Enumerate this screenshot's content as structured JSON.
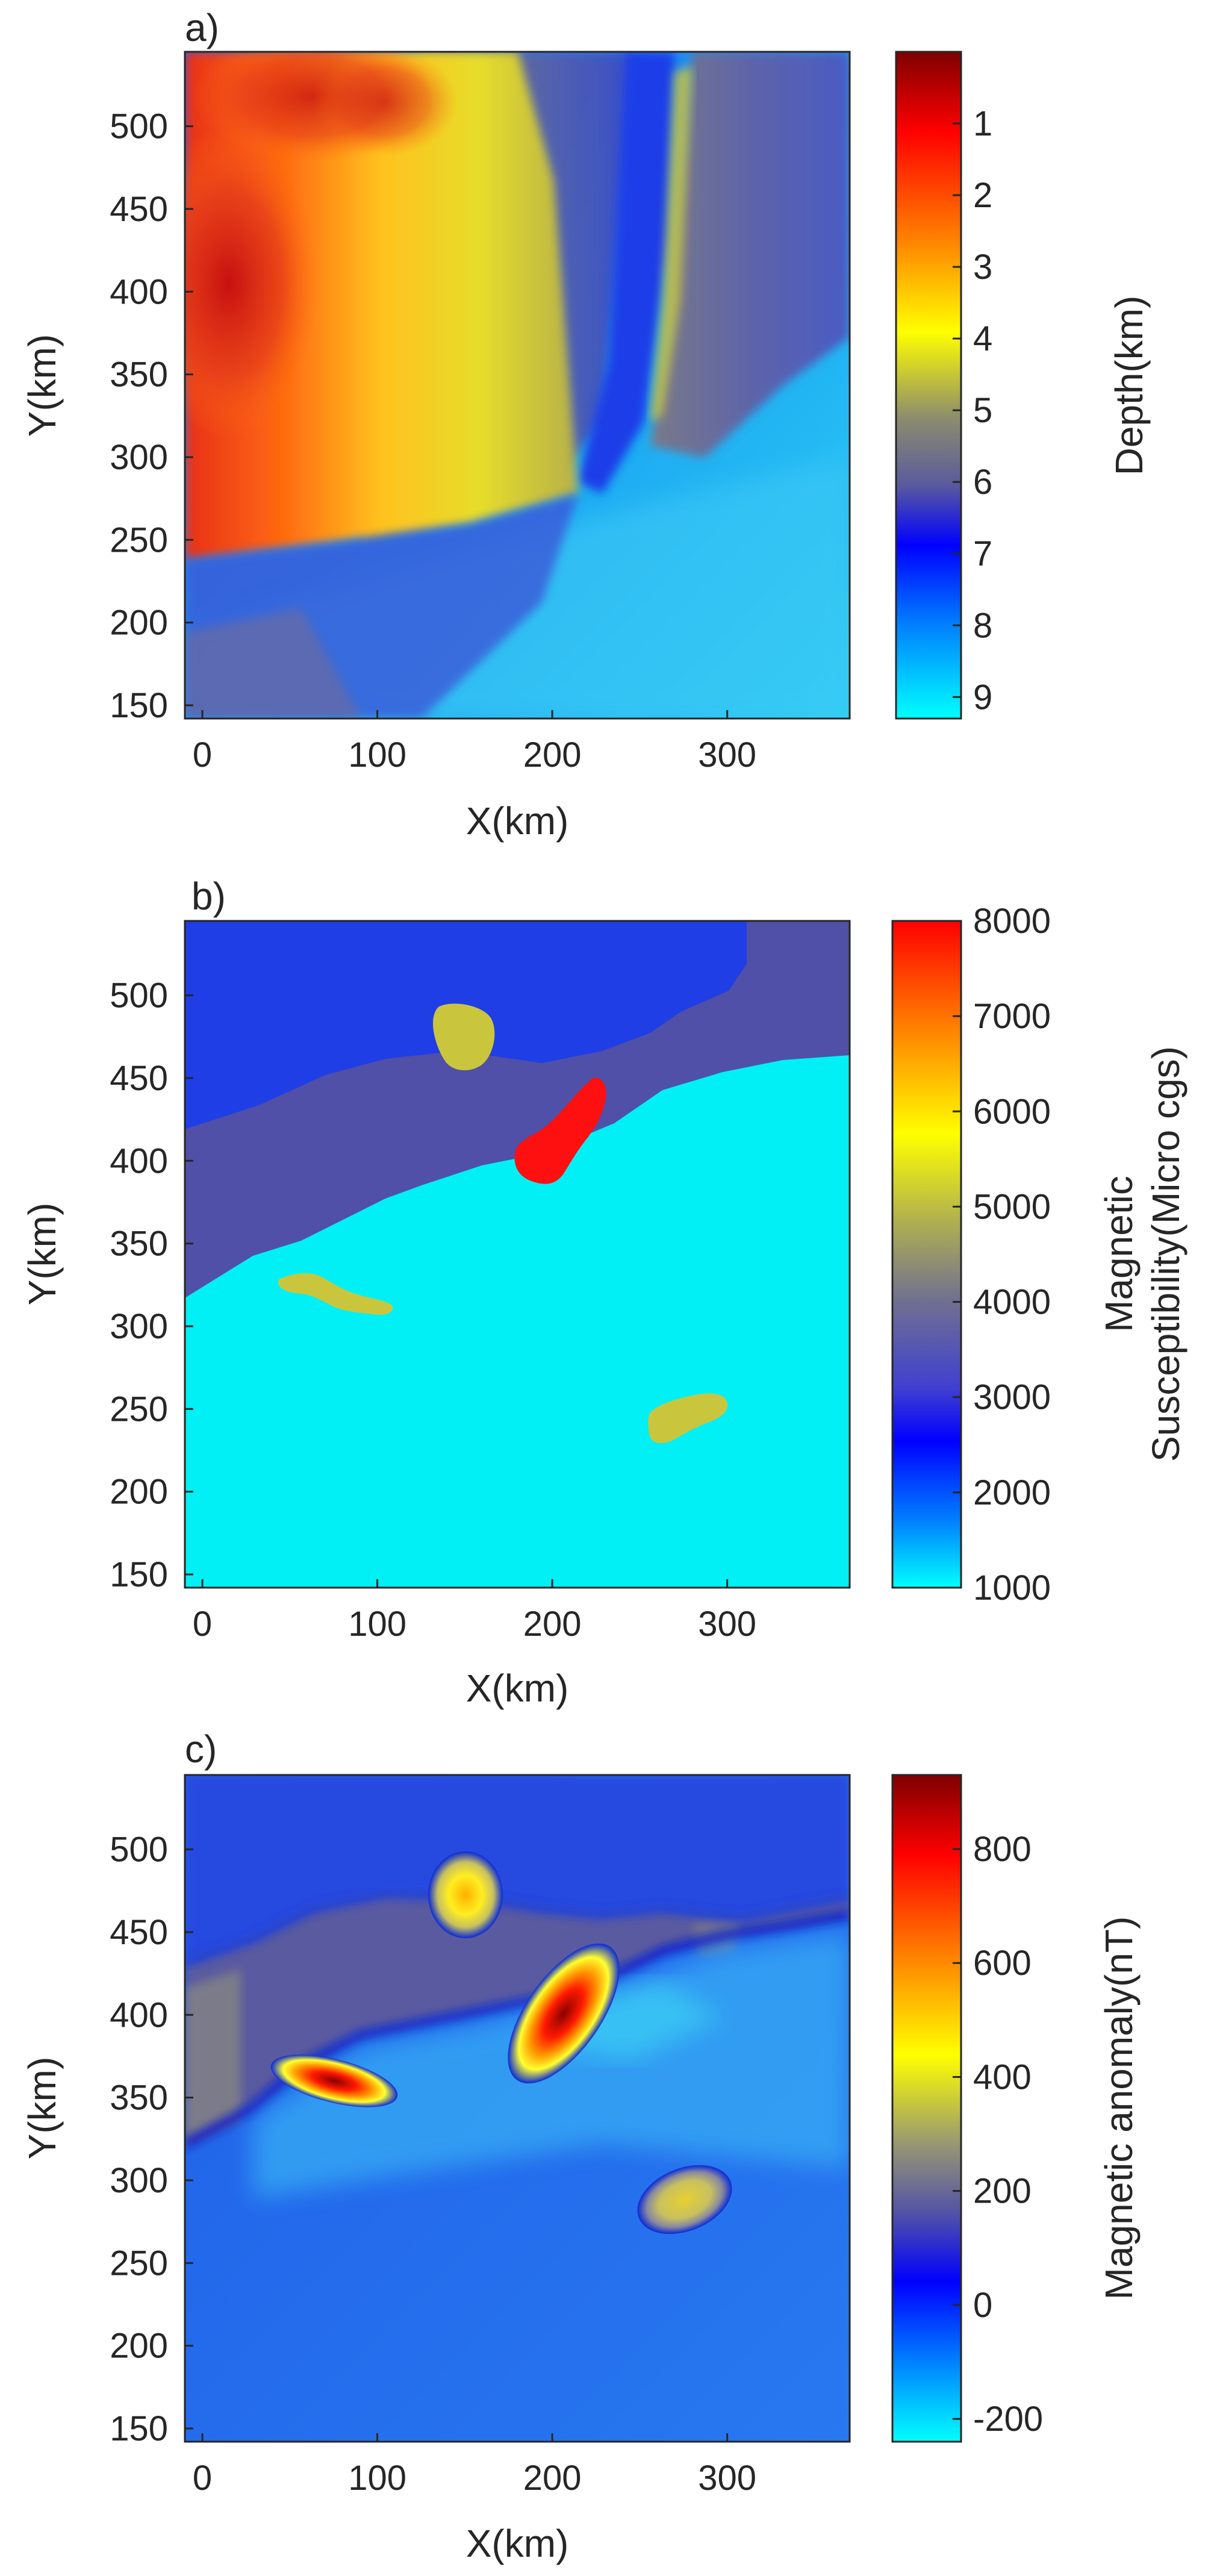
{
  "chart_data": [
    {
      "type": "heatmap",
      "panel_label": "a)",
      "xlabel": "X(km)",
      "ylabel": "Y(km)",
      "xlim": [
        -10,
        370
      ],
      "ylim": [
        142,
        545
      ],
      "xticks": [
        0,
        100,
        200,
        300
      ],
      "yticks": [
        150,
        200,
        250,
        300,
        350,
        400,
        450,
        500
      ],
      "colorbar": {
        "label": "Depth(km)",
        "range": [
          0,
          9.3
        ],
        "reversed": true,
        "ticks": [
          1,
          2,
          3,
          4,
          5,
          6,
          7,
          8,
          9
        ],
        "colors": [
          "#7f0000",
          "#ff0000",
          "#ff8000",
          "#ffff00",
          "#8c8c6e",
          "#5a5a9e",
          "#0000ff",
          "#0080ff",
          "#00ffff"
        ]
      },
      "features": [
        {
          "region": "northwest block (x 0-170, y 240-545)",
          "depth_km": [
            1,
            4
          ]
        },
        {
          "region": "central shelf (x 150-260, y 250-545)",
          "depth_km": [
            5,
            7
          ]
        },
        {
          "region": "northeast ridge (x 260-370, y 330-545)",
          "depth_km": [
            5,
            6
          ]
        },
        {
          "region": "southern basin (y 142-250)",
          "depth_km": [
            7,
            9
          ]
        }
      ]
    },
    {
      "type": "heatmap",
      "panel_label": "b)",
      "xlabel": "X(km)",
      "ylabel": "Y(km)",
      "xlim": [
        -10,
        370
      ],
      "ylim": [
        142,
        545
      ],
      "xticks": [
        0,
        100,
        200,
        300
      ],
      "yticks": [
        150,
        200,
        250,
        300,
        350,
        400,
        450,
        500
      ],
      "colorbar": {
        "label_lines": [
          "Magnetic",
          "Susceptibility(Micro cgs)"
        ],
        "range": [
          1000,
          8000
        ],
        "reversed": false,
        "ticks": [
          1000,
          2000,
          3000,
          4000,
          5000,
          6000,
          7000,
          8000
        ],
        "colors": [
          "#00ffff",
          "#0080ff",
          "#0000ff",
          "#4040d0",
          "#707090",
          "#b0b050",
          "#ffff00",
          "#ff8000",
          "#ff0000"
        ]
      },
      "layers": [
        {
          "name_hidden": true,
          "susceptibility": 2000,
          "color": "#1f3ee6"
        },
        {
          "name_hidden": true,
          "susceptibility": 3000,
          "color": "#5050a8"
        },
        {
          "name_hidden": true,
          "susceptibility": 1000,
          "color": "#00f0f5"
        }
      ],
      "bodies": [
        {
          "x": 155,
          "y": 475,
          "susceptibility": 5000,
          "color": "#c9c63e"
        },
        {
          "x": 207,
          "y": 385,
          "susceptibility": 8000,
          "color": "#ff1010"
        },
        {
          "x": 80,
          "y": 298,
          "susceptibility": 5000,
          "color": "#c9c63e"
        },
        {
          "x": 278,
          "y": 248,
          "susceptibility": 5000,
          "color": "#c9c63e"
        }
      ]
    },
    {
      "type": "heatmap",
      "panel_label": "c)",
      "xlabel": "X(km)",
      "ylabel": "Y(km)",
      "xlim": [
        -10,
        370
      ],
      "ylim": [
        142,
        545
      ],
      "xticks": [
        0,
        100,
        200,
        300
      ],
      "yticks": [
        150,
        200,
        250,
        300,
        350,
        400,
        450,
        500
      ],
      "colorbar": {
        "label": "Magnetic anomaly(nT)",
        "range": [
          -240,
          930
        ],
        "reversed": false,
        "ticks": [
          -200,
          0,
          200,
          400,
          600,
          800
        ],
        "colors": [
          "#00ffff",
          "#0080ff",
          "#0000ff",
          "#5050a8",
          "#9a9a70",
          "#ffff00",
          "#ff8000",
          "#ff0000",
          "#7f0000"
        ]
      },
      "anomalies": [
        {
          "x": 155,
          "y": 478,
          "peak_nT": 450
        },
        {
          "x": 207,
          "y": 385,
          "peak_nT": 900
        },
        {
          "x": 80,
          "y": 298,
          "peak_nT": 850
        },
        {
          "x": 278,
          "y": 248,
          "peak_nT": 350
        }
      ]
    }
  ]
}
